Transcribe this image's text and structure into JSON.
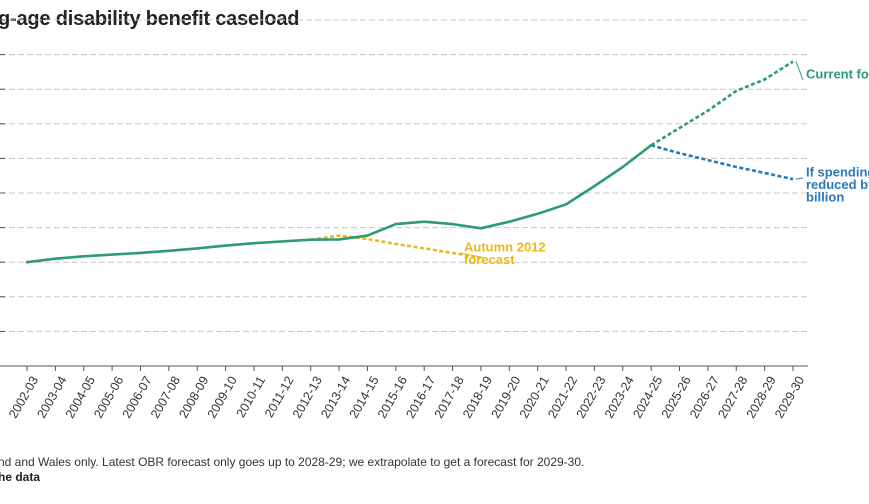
{
  "header": {
    "title": "g-age disability benefit caseload"
  },
  "footer": {
    "note": "nd and Wales only. Latest OBR forecast only goes up to 2028-29; we extrapolate to get a forecast for 2029-30.",
    "get_data": "he data"
  },
  "colors": {
    "actual": "#2e9b72",
    "autumn_2012": "#e8b820",
    "spending_reduced": "#2b78b8",
    "grid": "#c8c8c8",
    "axis": "#555555"
  },
  "chart_data": {
    "type": "line",
    "title": "g-age disability benefit caseload",
    "xlabel": "",
    "ylabel": "",
    "y_gridlines": 10,
    "ylim": [
      0,
      10
    ],
    "grid": true,
    "categories": [
      "2002-03",
      "2003-04",
      "2004-05",
      "2005-06",
      "2006-07",
      "2007-08",
      "2008-09",
      "2009-10",
      "2010-11",
      "2011-12",
      "2012-13",
      "2013-14",
      "2014-15",
      "2015-16",
      "2016-17",
      "2017-18",
      "2018-19",
      "2019-20",
      "2020-21",
      "2021-22",
      "2022-23",
      "2023-24",
      "2024-25",
      "2025-26",
      "2026-27",
      "2027-28",
      "2028-29",
      "2029-30"
    ],
    "series": [
      {
        "key": "actual",
        "style": "solid",
        "color": "#2e9b72",
        "points": [
          [
            "2002-03",
            3.0
          ],
          [
            "2003-04",
            3.1
          ],
          [
            "2004-05",
            3.17
          ],
          [
            "2005-06",
            3.22
          ],
          [
            "2006-07",
            3.27
          ],
          [
            "2007-08",
            3.33
          ],
          [
            "2008-09",
            3.4
          ],
          [
            "2009-10",
            3.48
          ],
          [
            "2010-11",
            3.55
          ],
          [
            "2011-12",
            3.6
          ],
          [
            "2012-13",
            3.65
          ],
          [
            "2013-14",
            3.66
          ],
          [
            "2014-15",
            3.77
          ],
          [
            "2015-16",
            4.1
          ],
          [
            "2016-17",
            4.17
          ],
          [
            "2017-18",
            4.1
          ],
          [
            "2018-19",
            3.98
          ],
          [
            "2019-20",
            4.17
          ],
          [
            "2020-21",
            4.4
          ],
          [
            "2021-22",
            4.67
          ],
          [
            "2022-23",
            5.2
          ],
          [
            "2023-24",
            5.75
          ],
          [
            "2024-25",
            6.38
          ]
        ]
      },
      {
        "name": "Current forecast",
        "key": "current_forecast",
        "style": "dashed",
        "color": "#2e9b72",
        "points": [
          [
            "2024-25",
            6.38
          ],
          [
            "2025-26",
            6.88
          ],
          [
            "2026-27",
            7.38
          ],
          [
            "2027-28",
            7.95
          ],
          [
            "2028-29",
            8.28
          ],
          [
            "2029-30",
            8.8
          ]
        ]
      },
      {
        "name": "Autumn 2012 forecast",
        "key": "autumn_2012",
        "style": "dashed",
        "color": "#e8b820",
        "points": [
          [
            "2012-13",
            3.65
          ],
          [
            "2013-14",
            3.77
          ],
          [
            "2014-15",
            3.67
          ],
          [
            "2015-16",
            3.53
          ],
          [
            "2016-17",
            3.4
          ],
          [
            "2017-18",
            3.27
          ],
          [
            "2018-19",
            3.13
          ]
        ]
      },
      {
        "name": "If spending reduced by billion",
        "key": "spending_reduced",
        "style": "dashed",
        "color": "#2b78b8",
        "points": [
          [
            "2024-25",
            6.38
          ],
          [
            "2025-26",
            6.15
          ],
          [
            "2026-27",
            5.95
          ],
          [
            "2027-28",
            5.75
          ],
          [
            "2028-29",
            5.58
          ],
          [
            "2029-30",
            5.4
          ]
        ]
      }
    ],
    "annotations": [
      {
        "series": "current_forecast",
        "lines": [
          "Current for"
        ]
      },
      {
        "series": "autumn_2012",
        "lines": [
          "Autumn 2012",
          "forecast"
        ]
      },
      {
        "series": "spending_reduced",
        "lines": [
          "If spending",
          "reduced by",
          "billion"
        ]
      }
    ]
  }
}
